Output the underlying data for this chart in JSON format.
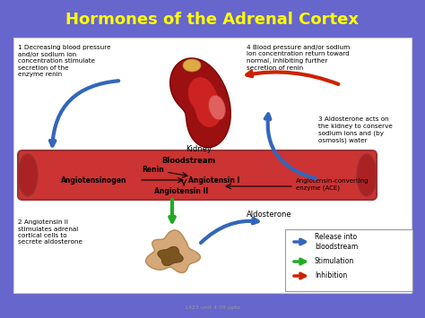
{
  "title": "Hormones of the Adrenal Cortex",
  "title_color": "#FFFF00",
  "title_fontsize": 13,
  "bg_color": "#6666CC",
  "diagram_bg": "#FFFFFF",
  "text_step1": "1 Decreasing blood pressure\nand/or sodium ion\nconcentration stimulate\nsecretion of the\nenzyme renin",
  "text_step4": "4 Blood pressure and/or sodium\nion concentration return toward\nnormal, inhibiting further\nsecretion of renin",
  "text_step3": "3 Aldosterone acts on\nthe kidney to conserve\nsodium ions and (by\nosmosis) water",
  "text_step2": "2 Angiotensin II\nstimulates adrenal\ncortical cells to\nsecrete aldosterone",
  "kidney_label": "Kidney",
  "bloodstream_label": "Bloodstream",
  "renin_label": "Renin",
  "angiotensinogen_label": "Angiotensinogen",
  "angiotensin1_label": "Angiotensin I",
  "angiotensin2_label": "Angiotensin II",
  "ace_label": "Angiotensin-converting\nenzyme (ACE)",
  "aldosterone_label": "Aldosterone",
  "legend_blue": "Release into\nbloodstream",
  "legend_green": "Stimulation",
  "legend_red": "Inhibition",
  "blue_arrow_color": "#3366BB",
  "green_arrow_color": "#22AA22",
  "red_arrow_color": "#CC2200",
  "bloodstream_color": "#CC3333",
  "bloodstream_dark": "#993333",
  "watermark": "1423 unit 4 09.pptx"
}
